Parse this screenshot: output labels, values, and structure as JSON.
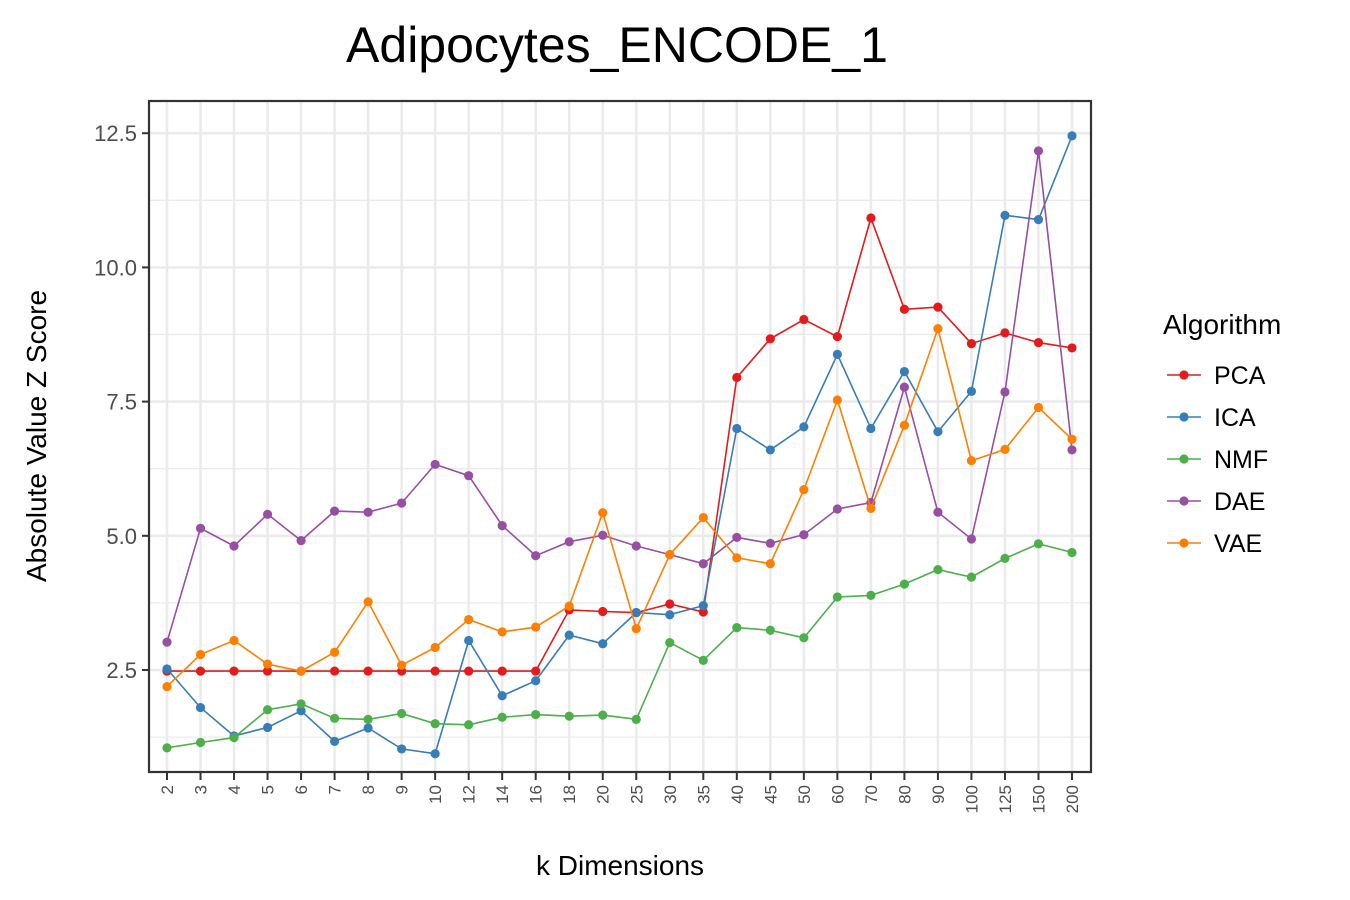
{
  "chart_data": {
    "type": "line",
    "title": "Adipocytes_ENCODE_1",
    "xlabel": "k Dimensions",
    "ylabel": "Absolute Value Z Score",
    "categories": [
      "2",
      "3",
      "4",
      "5",
      "6",
      "7",
      "8",
      "9",
      "10",
      "12",
      "14",
      "16",
      "18",
      "20",
      "25",
      "30",
      "35",
      "40",
      "45",
      "50",
      "60",
      "70",
      "80",
      "90",
      "100",
      "125",
      "150",
      "200"
    ],
    "yticks": [
      "2.5",
      "5.0",
      "7.5",
      "10.0",
      "12.5"
    ],
    "ylim": [
      0.6,
      13.1
    ],
    "grid": true,
    "legend": {
      "title": "Algorithm",
      "placement": "right"
    },
    "series": [
      {
        "name": "PCA",
        "color": "#e41a1c",
        "values": [
          2.48,
          2.48,
          2.48,
          2.48,
          2.48,
          2.48,
          2.48,
          2.48,
          2.48,
          2.48,
          2.48,
          2.48,
          3.62,
          3.59,
          3.57,
          3.73,
          3.58,
          7.95,
          8.67,
          9.03,
          8.71,
          10.92,
          9.22,
          9.26,
          8.58,
          8.78,
          8.6,
          8.5
        ]
      },
      {
        "name": "ICA",
        "color": "#377eb8",
        "values": [
          2.52,
          1.8,
          1.27,
          1.43,
          1.74,
          1.17,
          1.42,
          1.03,
          0.94,
          3.05,
          2.02,
          2.3,
          3.15,
          2.99,
          3.57,
          3.53,
          3.7,
          7.0,
          6.6,
          7.03,
          8.38,
          7.0,
          8.06,
          6.94,
          7.69,
          10.97,
          10.89,
          12.45
        ]
      },
      {
        "name": "NMF",
        "color": "#4daf4a",
        "values": [
          1.05,
          1.15,
          1.24,
          1.76,
          1.87,
          1.6,
          1.58,
          1.69,
          1.5,
          1.48,
          1.62,
          1.67,
          1.64,
          1.66,
          1.58,
          3.01,
          2.68,
          3.29,
          3.24,
          3.1,
          3.86,
          3.89,
          4.1,
          4.37,
          4.23,
          4.58,
          4.85,
          4.69
        ]
      },
      {
        "name": "DAE",
        "color": "#984ea3",
        "values": [
          3.02,
          5.14,
          4.81,
          5.4,
          4.91,
          5.46,
          5.44,
          5.61,
          6.33,
          6.12,
          5.19,
          4.63,
          4.89,
          5.01,
          4.81,
          4.65,
          4.48,
          4.97,
          4.86,
          5.02,
          5.5,
          5.62,
          7.77,
          5.44,
          4.94,
          7.68,
          12.17,
          6.6
        ]
      },
      {
        "name": "VAE",
        "color": "#ff7f00",
        "values": [
          2.19,
          2.79,
          3.05,
          2.61,
          2.48,
          2.83,
          3.77,
          2.59,
          2.92,
          3.44,
          3.21,
          3.3,
          3.69,
          5.43,
          3.27,
          4.65,
          5.34,
          4.59,
          4.48,
          5.86,
          7.53,
          5.51,
          7.06,
          8.86,
          6.4,
          6.61,
          7.39,
          6.8
        ]
      }
    ]
  }
}
